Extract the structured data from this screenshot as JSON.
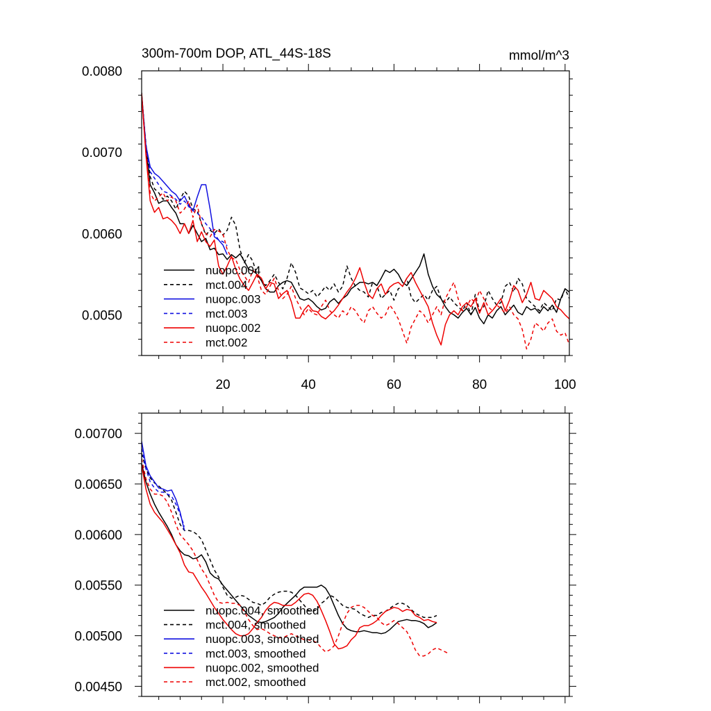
{
  "figure": {
    "title_left": "300m-700m DOP, ATL_44S-18S",
    "title_right": "mmol/m^3"
  },
  "chart_data": [
    {
      "type": "line",
      "title": "300m-700m DOP, ATL_44S-18S",
      "units": "mmol/m^3",
      "xlim": [
        1,
        101
      ],
      "ylim": [
        0.0045,
        0.008
      ],
      "x_ticks": [
        20,
        40,
        60,
        80,
        100
      ],
      "x_tick_labels": [
        "20",
        "40",
        "60",
        "80",
        "100"
      ],
      "y_ticks": [
        0.005,
        0.006,
        0.007,
        0.008
      ],
      "y_tick_labels": [
        "0.0050",
        "0.0060",
        "0.0070",
        "0.0080"
      ],
      "legend_position": "bottom-left",
      "series": [
        {
          "name": "nuopc.004",
          "color": "#000000",
          "dash": "solid",
          "x_start": 1,
          "values": [
            0.00773,
            0.00705,
            0.0066,
            0.0065,
            0.00637,
            0.0064,
            0.0064,
            0.00632,
            0.00625,
            0.00612,
            0.00612,
            0.006,
            0.0061,
            0.006,
            0.0059,
            0.00594,
            0.0058,
            0.00582,
            0.00574,
            0.00575,
            0.00568,
            0.00574,
            0.0057,
            0.00575,
            0.00566,
            0.00556,
            0.00554,
            0.0055,
            0.00542,
            0.00532,
            0.00528,
            0.00528,
            0.00536,
            0.0054,
            0.00542,
            0.0054,
            0.0053,
            0.0052,
            0.00518,
            0.0052,
            0.00516,
            0.0051,
            0.00506,
            0.00508,
            0.00516,
            0.0052,
            0.00514,
            0.0052,
            0.00524,
            0.00532,
            0.00536,
            0.0054,
            0.0054,
            0.00538,
            0.0054,
            0.00536,
            0.00545,
            0.00555,
            0.00552,
            0.00556,
            0.0055,
            0.0054,
            0.00536,
            0.00544,
            0.00552,
            0.0056,
            0.00575,
            0.0055,
            0.00535,
            0.00525,
            0.0052,
            0.0051,
            0.00503,
            0.005,
            0.00496,
            0.00503,
            0.00508,
            0.005,
            0.00509,
            0.00496,
            0.00489,
            0.005,
            0.00496,
            0.00505,
            0.0051,
            0.005,
            0.00506,
            0.00512,
            0.00503,
            0.005,
            0.0051,
            0.00506,
            0.00508,
            0.00502,
            0.0051,
            0.00505,
            0.00512,
            0.00503,
            0.0052,
            0.00532,
            0.00528
          ]
        },
        {
          "name": "mct.004",
          "color": "#000000",
          "dash": "dashed",
          "x_start": 1,
          "values": [
            0.0077,
            0.0071,
            0.0067,
            0.00655,
            0.0065,
            0.00642,
            0.00646,
            0.0064,
            0.0063,
            0.00642,
            0.00652,
            0.00646,
            0.0063,
            0.00628,
            0.00612,
            0.00598,
            0.00604,
            0.006,
            0.00606,
            0.00598,
            0.00604,
            0.0062,
            0.0061,
            0.0058,
            0.00564,
            0.00574,
            0.00566,
            0.00548,
            0.00544,
            0.00536,
            0.00542,
            0.0055,
            0.0054,
            0.00532,
            0.00545,
            0.00564,
            0.00552,
            0.00533,
            0.0053,
            0.00526,
            0.0053,
            0.00522,
            0.00528,
            0.00535,
            0.0053,
            0.00538,
            0.00528,
            0.00535,
            0.0056,
            0.00545,
            0.00535,
            0.0053,
            0.00528,
            0.00522,
            0.0054,
            0.00536,
            0.0052,
            0.00525,
            0.0053,
            0.00518,
            0.00532,
            0.00535,
            0.00545,
            0.00522,
            0.00515,
            0.0052,
            0.00525,
            0.00518,
            0.0053,
            0.00535,
            0.0052,
            0.00515,
            0.00522,
            0.00515,
            0.0051,
            0.00505,
            0.00515,
            0.005,
            0.00525,
            0.00505,
            0.0051,
            0.0053,
            0.0052,
            0.00512,
            0.00515,
            0.00535,
            0.0054,
            0.00528,
            0.00545,
            0.00538,
            0.0052,
            0.00515,
            0.0051,
            0.00505,
            0.00515,
            0.0051,
            0.00505,
            0.0052,
            0.00518,
            0.00532,
            0.0052
          ]
        },
        {
          "name": "nuopc.003",
          "color": "#1010e0",
          "dash": "solid",
          "x_start": 1,
          "values": [
            0.0077,
            0.00708,
            0.00682,
            0.00674,
            0.0067,
            0.00664,
            0.00658,
            0.00652,
            0.00648,
            0.0064,
            0.00646,
            0.00635,
            0.00628,
            0.00645,
            0.0066,
            0.0066,
            0.0063,
            0.00596,
            0.00592,
            0.00586,
            0.00574
          ]
        },
        {
          "name": "mct.003",
          "color": "#1010e0",
          "dash": "dashed",
          "x_start": 1,
          "values": [
            0.00768,
            0.00705,
            0.00676,
            0.00668,
            0.0066,
            0.00652,
            0.0065,
            0.00646,
            0.00642,
            0.00636,
            0.0064,
            0.00633,
            0.00628,
            0.00625,
            0.0062,
            0.00612,
            0.00606,
            0.006,
            0.00592,
            0.0059,
            0.00585
          ]
        },
        {
          "name": "nuopc.002",
          "color": "#ee0000",
          "dash": "solid",
          "x_start": 1,
          "values": [
            0.00772,
            0.00696,
            0.0064,
            0.00626,
            0.00632,
            0.00618,
            0.0062,
            0.00616,
            0.0061,
            0.006,
            0.00612,
            0.006,
            0.00616,
            0.0059,
            0.00602,
            0.0059,
            0.00584,
            0.00592,
            0.0056,
            0.0055,
            0.0056,
            0.00572,
            0.00556,
            0.00544,
            0.00536,
            0.0053,
            0.0054,
            0.0055,
            0.00545,
            0.00532,
            0.0054,
            0.00538,
            0.0052,
            0.00526,
            0.0053,
            0.00516,
            0.00496,
            0.00496,
            0.00506,
            0.00512,
            0.00505,
            0.00504,
            0.00498,
            0.00495,
            0.005,
            0.00505,
            0.00512,
            0.0052,
            0.00528,
            0.00535,
            0.00545,
            0.00558,
            0.0054,
            0.00525,
            0.0052,
            0.00532,
            0.00538,
            0.00525,
            0.00534,
            0.00538,
            0.0054,
            0.00535,
            0.00545,
            0.00552,
            0.0054,
            0.0053,
            0.0052,
            0.0051,
            0.0049,
            0.00475,
            0.00463,
            0.00488,
            0.005,
            0.00505,
            0.005,
            0.0051,
            0.00515,
            0.0051,
            0.0052,
            0.00502,
            0.00515,
            0.005,
            0.00505,
            0.00512,
            0.0052,
            0.00505,
            0.00518,
            0.00536,
            0.0053,
            0.00515,
            0.00525,
            0.0054,
            0.0052,
            0.00518,
            0.0053,
            0.00525,
            0.0052,
            0.0051,
            0.00506,
            0.005,
            0.00495
          ]
        },
        {
          "name": "mct.002",
          "color": "#ee0000",
          "dash": "dashed",
          "x_start": 1,
          "values": [
            0.00768,
            0.007,
            0.0065,
            0.0064,
            0.00645,
            0.0065,
            0.0064,
            0.00645,
            0.0064,
            0.00625,
            0.0063,
            0.0064,
            0.0062,
            0.00635,
            0.00612,
            0.006,
            0.00596,
            0.00605,
            0.00603,
            0.006,
            0.0058,
            0.0057,
            0.00568,
            0.00555,
            0.00548,
            0.0054,
            0.00555,
            0.00548,
            0.0053,
            0.00525,
            0.00535,
            0.00545,
            0.0053,
            0.0052,
            0.00525,
            0.00535,
            0.0052,
            0.0051,
            0.005,
            0.00508,
            0.00502,
            0.005,
            0.0051,
            0.00518,
            0.00505,
            0.005,
            0.00496,
            0.00505,
            0.005,
            0.0051,
            0.00505,
            0.00496,
            0.0049,
            0.00505,
            0.0051,
            0.00502,
            0.00496,
            0.005,
            0.00512,
            0.00505,
            0.00495,
            0.0048,
            0.00465,
            0.00485,
            0.00495,
            0.00505,
            0.005,
            0.0049,
            0.005,
            0.0051,
            0.005,
            0.0052,
            0.0053,
            0.0054,
            0.0052,
            0.00505,
            0.0051,
            0.0052,
            0.00515,
            0.0053,
            0.0052,
            0.0051,
            0.00505,
            0.00512,
            0.00508,
            0.00502,
            0.0051,
            0.005,
            0.00495,
            0.00482,
            0.00458,
            0.0047,
            0.0049,
            0.00486,
            0.0048,
            0.0049,
            0.00495,
            0.0048,
            0.00475,
            0.00478,
            0.00463
          ]
        }
      ]
    },
    {
      "type": "line",
      "title": "",
      "xlim": [
        1,
        101
      ],
      "ylim": [
        0.0044,
        0.0072
      ],
      "x_ticks": [
        20,
        40,
        60,
        80,
        100
      ],
      "y_ticks": [
        0.0045,
        0.005,
        0.0055,
        0.006,
        0.0065,
        0.007
      ],
      "y_tick_labels": [
        "0.00450",
        "0.00500",
        "0.00550",
        "0.00600",
        "0.00650",
        "0.00700"
      ],
      "legend_position": "bottom-left",
      "series": [
        {
          "name": "nuopc.004, smoothed",
          "color": "#000000",
          "dash": "solid",
          "x_start": 1,
          "values": [
            0.0067,
            0.00652,
            0.0064,
            0.0063,
            0.00622,
            0.00615,
            0.00608,
            0.006,
            0.0059,
            0.00584,
            0.0058,
            0.00579,
            0.00576,
            0.00577,
            0.0058,
            0.00573,
            0.00562,
            0.00558,
            0.00556,
            0.0055,
            0.00545,
            0.0054,
            0.00535,
            0.0053,
            0.00525,
            0.0052,
            0.00517,
            0.00514,
            0.00513,
            0.00514,
            0.00516,
            0.00518,
            0.00522,
            0.00528,
            0.00532,
            0.00536,
            0.0054,
            0.00545,
            0.00548,
            0.00548,
            0.00548,
            0.00548,
            0.0055,
            0.00547,
            0.0054,
            0.0053,
            0.0052,
            0.00512,
            0.00507,
            0.00505,
            0.00504,
            0.00504,
            0.00505,
            0.00504,
            0.00503,
            0.00503,
            0.00502,
            0.00503,
            0.00506,
            0.0051,
            0.00514,
            0.00515,
            0.00516,
            0.00515,
            0.00515,
            0.00514,
            0.00512,
            0.00508,
            0.0051,
            0.00513
          ]
        },
        {
          "name": "mct.004, smoothed",
          "color": "#000000",
          "dash": "dashed",
          "x_start": 1,
          "values": [
            0.0068,
            0.00665,
            0.00656,
            0.00651,
            0.00648,
            0.00644,
            0.0064,
            0.00634,
            0.00622,
            0.0061,
            0.00604,
            0.00604,
            0.00603,
            0.006,
            0.00595,
            0.00585,
            0.00575,
            0.00565,
            0.00558,
            0.00548,
            0.0054,
            0.00537,
            0.00538,
            0.0054,
            0.00539,
            0.00536,
            0.00533,
            0.00532,
            0.0053,
            0.00533,
            0.00538,
            0.00541,
            0.00543,
            0.00544,
            0.00544,
            0.00543,
            0.0054,
            0.00535,
            0.0053,
            0.00525,
            0.00524,
            0.00526,
            0.00532,
            0.00535,
            0.0054,
            0.00538,
            0.00534,
            0.0053,
            0.00528,
            0.00527,
            0.00526,
            0.00522,
            0.0052,
            0.00518,
            0.0052,
            0.0052,
            0.00523,
            0.00524,
            0.00527,
            0.0053,
            0.00532,
            0.00532,
            0.0053,
            0.00526,
            0.00522,
            0.0052,
            0.00518,
            0.00518,
            0.00518,
            0.0052
          ]
        },
        {
          "name": "nuopc.003, smoothed",
          "color": "#1010e0",
          "dash": "solid",
          "x_start": 1,
          "values": [
            0.00692,
            0.00668,
            0.00658,
            0.00652,
            0.00646,
            0.00645,
            0.00643,
            0.00644,
            0.00635,
            0.00622,
            0.00604
          ]
        },
        {
          "name": "mct.003, smoothed",
          "color": "#1010e0",
          "dash": "dashed",
          "x_start": 1,
          "values": [
            0.00685,
            0.00665,
            0.00652,
            0.00646,
            0.00642,
            0.00642,
            0.0064,
            0.00638,
            0.0063,
            0.0062,
            0.00608
          ]
        },
        {
          "name": "nuopc.002, smoothed",
          "color": "#ee0000",
          "dash": "solid",
          "x_start": 1,
          "values": [
            0.00668,
            0.00645,
            0.0063,
            0.00622,
            0.00617,
            0.00612,
            0.00605,
            0.00598,
            0.0059,
            0.00582,
            0.0057,
            0.00563,
            0.00562,
            0.00555,
            0.00548,
            0.00542,
            0.00535,
            0.00528,
            0.00522,
            0.00516,
            0.00511,
            0.00506,
            0.00502,
            0.005,
            0.005,
            0.00502,
            0.00507,
            0.00513,
            0.00518,
            0.00525,
            0.0053,
            0.00533,
            0.00532,
            0.0053,
            0.0053,
            0.0053,
            0.00533,
            0.00537,
            0.00541,
            0.00542,
            0.0054,
            0.00534,
            0.00525,
            0.00515,
            0.00504,
            0.00492,
            0.00487,
            0.00488,
            0.0049,
            0.00496,
            0.005,
            0.00508,
            0.0051,
            0.0051,
            0.00512,
            0.00515,
            0.0052,
            0.00524,
            0.00526,
            0.00528,
            0.00527,
            0.00524,
            0.00526,
            0.00525,
            0.0052,
            0.00518,
            0.00515,
            0.00516,
            0.00514,
            0.00513
          ]
        },
        {
          "name": "mct.002, smoothed",
          "color": "#ee0000",
          "dash": "dashed",
          "x_start": 1,
          "values": [
            0.00675,
            0.00655,
            0.00645,
            0.0064,
            0.0064,
            0.00638,
            0.00632,
            0.00622,
            0.0061,
            0.006,
            0.00595,
            0.0059,
            0.00584,
            0.00575,
            0.00566,
            0.0056,
            0.0055,
            0.0054,
            0.00533,
            0.00532,
            0.00533,
            0.00532,
            0.00532,
            0.0053,
            0.00524,
            0.00516,
            0.0051,
            0.00506,
            0.00507,
            0.00505,
            0.00502,
            0.005,
            0.00498,
            0.00498,
            0.005,
            0.00502,
            0.005,
            0.00498,
            0.00496,
            0.00496,
            0.00495,
            0.00493,
            0.00488,
            0.00484,
            0.00486,
            0.0049,
            0.005,
            0.00512,
            0.00522,
            0.00528,
            0.0053,
            0.0053,
            0.00528,
            0.00524,
            0.0052,
            0.00518,
            0.00513,
            0.0051,
            0.00512,
            0.00515,
            0.00512,
            0.00508,
            0.00504,
            0.00496,
            0.00486,
            0.0048,
            0.0048,
            0.00482,
            0.00486,
            0.00488,
            0.00486,
            0.00484,
            0.00482
          ]
        }
      ]
    }
  ]
}
